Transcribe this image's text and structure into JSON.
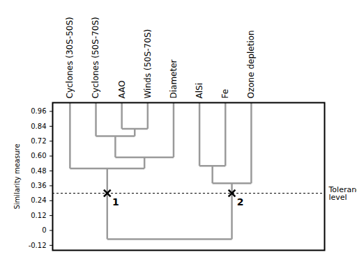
{
  "chart_data": {
    "type": "dendrogram",
    "y_label": "Similarity measure",
    "ylim": [
      -0.16,
      1.03
    ],
    "yticks": [
      -0.12,
      0,
      0.12,
      0.24,
      0.36,
      0.48,
      {
        "value": 0.6,
        "label": "0.60"
      },
      0.72,
      0.84,
      0.96
    ],
    "leaves": [
      "Cyclones (30S-50S)",
      "Cyclones (50S-70S)",
      "AAO",
      "Winds (50S-70S)",
      "Diameter",
      "AlSi",
      "Fe",
      "Ozone depletion"
    ],
    "merges": [
      {
        "children": [
          2,
          3
        ],
        "height": 0.82
      },
      {
        "children": [
          1,
          8
        ],
        "height": 0.76
      },
      {
        "children": [
          9,
          4
        ],
        "height": 0.59
      },
      {
        "children": [
          0,
          10
        ],
        "height": 0.5
      },
      {
        "children": [
          5,
          6
        ],
        "height": 0.52
      },
      {
        "children": [
          12,
          7
        ],
        "height": 0.38
      },
      {
        "children": [
          11,
          13
        ],
        "height": -0.07
      }
    ],
    "tolerance": {
      "value": 0.3,
      "label": "Tolerance level"
    },
    "cluster_labels": [
      "1",
      "2"
    ],
    "color": "#9a9a9a"
  }
}
